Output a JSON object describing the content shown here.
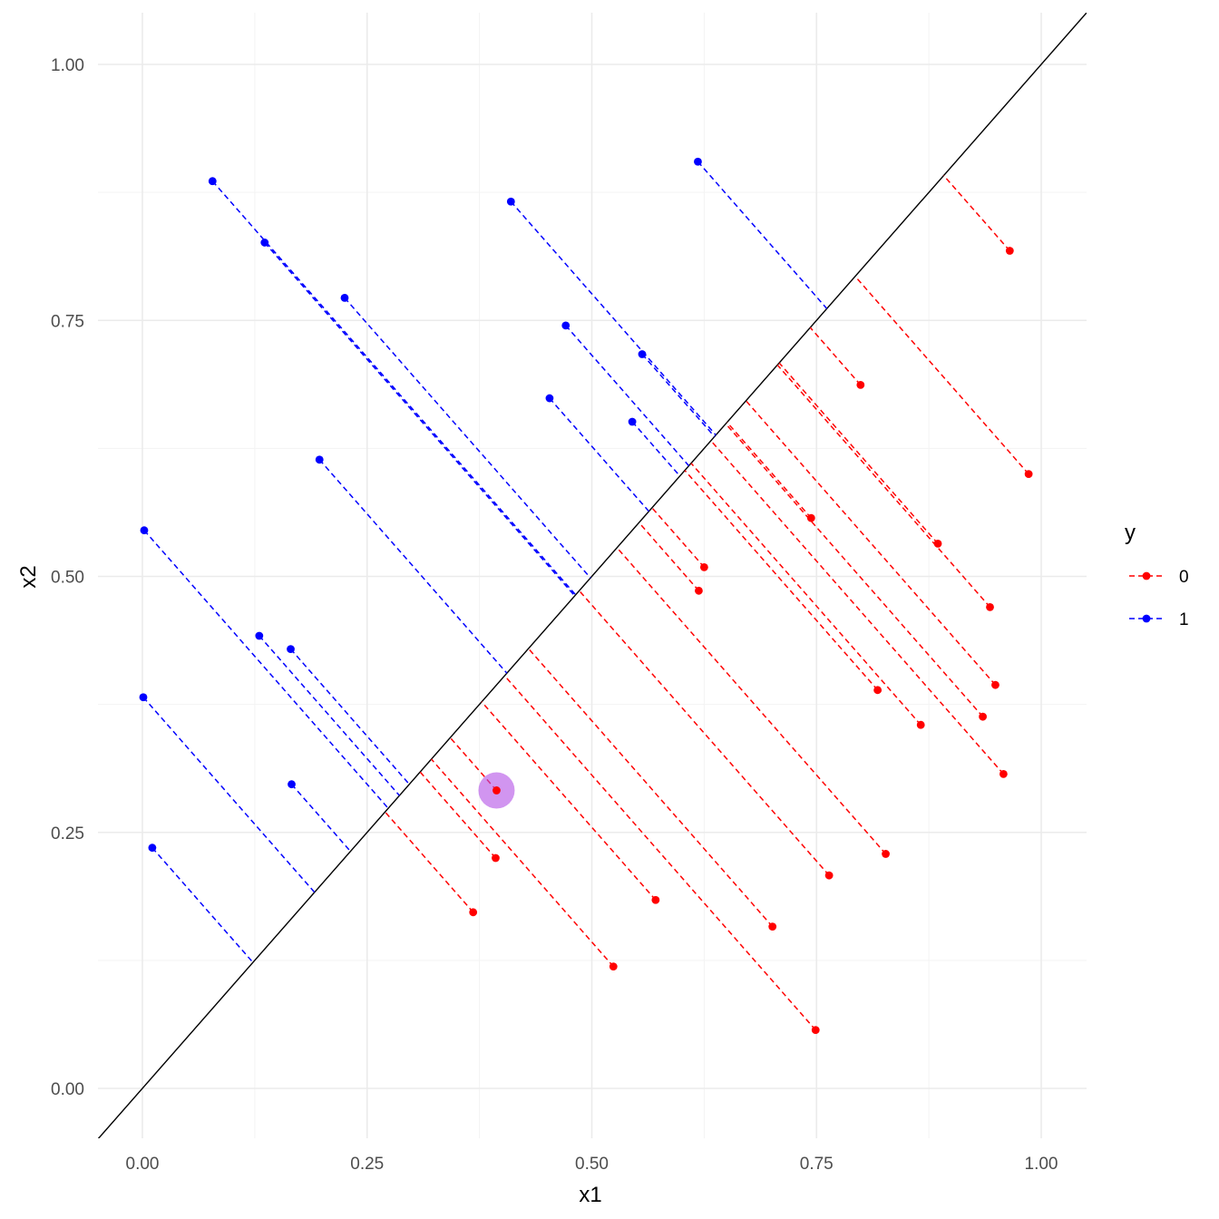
{
  "chart_data": {
    "type": "scatter",
    "xlabel": "x1",
    "ylabel": "x2",
    "xlim": [
      -0.05,
      1.05
    ],
    "ylim": [
      -0.05,
      1.05
    ],
    "x_ticks": [
      0.0,
      0.25,
      0.5,
      0.75,
      1.0
    ],
    "y_ticks": [
      0.0,
      0.25,
      0.5,
      0.75,
      1.0
    ],
    "x_tick_labels": [
      "0.00",
      "0.25",
      "0.50",
      "0.75",
      "1.00"
    ],
    "y_tick_labels": [
      "0.00",
      "0.25",
      "0.50",
      "0.75",
      "1.00"
    ],
    "grid": true,
    "reference_line": {
      "slope": 1,
      "intercept": 0,
      "color": "#000000"
    },
    "legend": {
      "title": "y",
      "placement": "right",
      "entries": [
        {
          "label": "0",
          "color": "#ff0000"
        },
        {
          "label": "1",
          "color": "#0000ff"
        }
      ]
    },
    "highlight": {
      "x": 0.394,
      "y": 0.291,
      "color": "#b24ee6"
    },
    "series": [
      {
        "name": "0",
        "color": "#ff0000",
        "points": [
          {
            "x": 0.965,
            "y": 0.818
          },
          {
            "x": 0.799,
            "y": 0.687
          },
          {
            "x": 0.986,
            "y": 0.6
          },
          {
            "x": 0.744,
            "y": 0.557
          },
          {
            "x": 0.885,
            "y": 0.532
          },
          {
            "x": 0.625,
            "y": 0.509
          },
          {
            "x": 0.619,
            "y": 0.486
          },
          {
            "x": 0.943,
            "y": 0.47
          },
          {
            "x": 0.949,
            "y": 0.394
          },
          {
            "x": 0.818,
            "y": 0.389
          },
          {
            "x": 0.935,
            "y": 0.363
          },
          {
            "x": 0.866,
            "y": 0.355
          },
          {
            "x": 0.958,
            "y": 0.307
          },
          {
            "x": 0.394,
            "y": 0.291
          },
          {
            "x": 0.827,
            "y": 0.229
          },
          {
            "x": 0.393,
            "y": 0.225
          },
          {
            "x": 0.764,
            "y": 0.208
          },
          {
            "x": 0.571,
            "y": 0.184
          },
          {
            "x": 0.368,
            "y": 0.172
          },
          {
            "x": 0.701,
            "y": 0.158
          },
          {
            "x": 0.524,
            "y": 0.119
          },
          {
            "x": 0.749,
            "y": 0.057
          }
        ]
      },
      {
        "name": "1",
        "color": "#0000ff",
        "points": [
          {
            "x": 0.618,
            "y": 0.905
          },
          {
            "x": 0.078,
            "y": 0.886
          },
          {
            "x": 0.41,
            "y": 0.866
          },
          {
            "x": 0.136,
            "y": 0.826
          },
          {
            "x": 0.225,
            "y": 0.772
          },
          {
            "x": 0.471,
            "y": 0.745
          },
          {
            "x": 0.556,
            "y": 0.717
          },
          {
            "x": 0.453,
            "y": 0.674
          },
          {
            "x": 0.545,
            "y": 0.651
          },
          {
            "x": 0.197,
            "y": 0.614
          },
          {
            "x": 0.002,
            "y": 0.545
          },
          {
            "x": 0.13,
            "y": 0.442
          },
          {
            "x": 0.165,
            "y": 0.429
          },
          {
            "x": 0.001,
            "y": 0.382
          },
          {
            "x": 0.166,
            "y": 0.297
          },
          {
            "x": 0.011,
            "y": 0.235
          }
        ]
      }
    ]
  }
}
